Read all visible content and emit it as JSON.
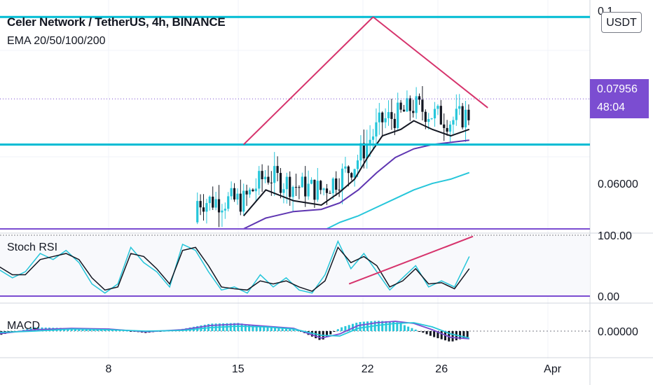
{
  "header": {
    "symbol_title": "Celer Network / TetherUS, 4h, BINANCE",
    "indicator_label": "EMA 20/50/100/200"
  },
  "currency_badge": "USDT",
  "price_tags": {
    "current_price": "0.07956",
    "countdown": "48:04"
  },
  "panes": {
    "stoch_label": "Stoch RSI",
    "macd_label": "MACD"
  },
  "colors": {
    "up_candle": "#26c6da",
    "down_candle": "#131722",
    "ema20": "#131722",
    "ema50": "#5e35b1",
    "ema100": "#26c6da",
    "trendline": "#d6336c",
    "horizontal_level": "#00bcd4",
    "stoch_k": "#26c6da",
    "stoch_d": "#131722",
    "macd_line": "#7b4dd1",
    "signal_line": "#26c6da",
    "hist_pos": "#26c6da",
    "hist_neg": "#131722",
    "price_tag_bg": "#7b4dd1"
  },
  "chart_data": [
    {
      "type": "candlestick",
      "title": "Celer Network / TetherUS, 4h, BINANCE",
      "x_ticks": [
        "8",
        "15",
        "22",
        "26",
        "Apr"
      ],
      "y_ticks": [
        "0.06000",
        "0.07956",
        "0.1"
      ],
      "ylim": [
        0.049,
        0.1
      ],
      "current_price": 0.07956,
      "horizontal_levels": [
        0.0985,
        0.069
      ],
      "trendlines": [
        {
          "from": [
            15.3,
            0.069
          ],
          "to": [
            22.3,
            0.0985
          ]
        },
        {
          "from": [
            22.3,
            0.0985
          ],
          "to": [
            28.5,
            0.0775
          ]
        }
      ],
      "series": [
        {
          "name": "EMA 20/50/100/200",
          "type": "line",
          "x": [
            15.3,
            16.5,
            18.0,
            19.5,
            20.5,
            21.3,
            22.0,
            22.8,
            23.8,
            24.5,
            25.5,
            26.5,
            27.5
          ],
          "values": [
            0.0525,
            0.0585,
            0.056,
            0.055,
            0.058,
            0.061,
            0.066,
            0.071,
            0.0725,
            0.0745,
            0.0725,
            0.071,
            0.0725
          ]
        },
        {
          "type": "line",
          "x": [
            15.3,
            16.5,
            18.0,
            19.5,
            20.5,
            21.5,
            22.5,
            23.5,
            24.5,
            25.5,
            26.5,
            27.5
          ],
          "values": [
            0.0495,
            0.052,
            0.0535,
            0.054,
            0.0555,
            0.0585,
            0.0625,
            0.066,
            0.068,
            0.069,
            0.0695,
            0.07
          ]
        },
        {
          "type": "line",
          "x": [
            19.8,
            20.5,
            21.5,
            22.5,
            23.5,
            24.5,
            25.5,
            26.5,
            27.5
          ],
          "values": [
            0.0495,
            0.051,
            0.0525,
            0.0545,
            0.0565,
            0.0585,
            0.06,
            0.061,
            0.0625
          ]
        }
      ]
    },
    {
      "type": "line",
      "name": "Stoch RSI",
      "y_ticks": [
        "100.00",
        "0.00"
      ],
      "ylim": [
        0,
        100
      ],
      "bands": [
        80,
        20
      ],
      "series": [
        {
          "x": [
            2.0,
            2.8,
            3.5,
            4.3,
            5.0,
            5.7,
            6.4,
            7.1,
            7.8,
            8.5,
            9.2,
            9.9,
            10.6,
            11.3,
            12.0,
            12.7,
            13.4,
            14.1,
            14.8,
            15.5,
            16.2,
            16.9,
            17.6,
            18.3,
            19.0,
            19.7,
            20.4,
            21.1,
            21.8,
            22.5,
            23.2,
            23.9,
            24.6,
            25.3,
            26.0,
            26.7,
            27.5
          ],
          "values": [
            45,
            30,
            40,
            70,
            60,
            75,
            55,
            20,
            5,
            20,
            80,
            55,
            40,
            15,
            85,
            75,
            40,
            10,
            15,
            5,
            35,
            15,
            30,
            10,
            5,
            35,
            90,
            45,
            70,
            40,
            10,
            30,
            50,
            15,
            25,
            15,
            65
          ]
        },
        {
          "x": [
            2.0,
            2.8,
            3.5,
            4.3,
            5.0,
            5.7,
            6.4,
            7.1,
            7.8,
            8.5,
            9.2,
            9.9,
            10.6,
            11.3,
            12.0,
            12.7,
            13.4,
            14.1,
            14.8,
            15.5,
            16.2,
            16.9,
            17.6,
            18.3,
            19.0,
            19.7,
            20.4,
            21.1,
            21.8,
            22.5,
            23.2,
            23.9,
            24.6,
            25.3,
            26.0,
            26.7,
            27.5
          ],
          "values": [
            50,
            35,
            35,
            60,
            65,
            70,
            60,
            30,
            10,
            15,
            70,
            65,
            45,
            20,
            75,
            80,
            50,
            15,
            12,
            10,
            25,
            20,
            25,
            15,
            8,
            25,
            80,
            55,
            65,
            50,
            15,
            25,
            45,
            20,
            22,
            12,
            45
          ]
        }
      ],
      "trendlines": [
        {
          "from": [
            21.0,
            20
          ],
          "to": [
            27.7,
            98
          ]
        }
      ]
    },
    {
      "type": "line",
      "name": "MACD",
      "y_ticks": [
        "0.00000"
      ],
      "ylim": [
        -1,
        1
      ],
      "series": [
        {
          "x": [
            2.0,
            4.0,
            6.0,
            8.0,
            10.0,
            12.0,
            13.5,
            15.0,
            16.5,
            18.0,
            19.5,
            20.5,
            21.5,
            22.5,
            23.5,
            24.5,
            25.5,
            26.5,
            27.5
          ],
          "values": [
            -0.2,
            0.1,
            0.2,
            0.15,
            -0.05,
            0.1,
            0.4,
            0.5,
            0.35,
            0.2,
            -0.5,
            -0.2,
            0.4,
            0.6,
            0.7,
            0.55,
            0.1,
            -0.45,
            -0.55
          ]
        },
        {
          "x": [
            2.0,
            4.0,
            6.0,
            8.0,
            10.0,
            12.0,
            13.5,
            15.0,
            16.5,
            18.0,
            19.5,
            20.5,
            21.5,
            22.5,
            23.5,
            24.5,
            25.5,
            26.5,
            27.5
          ],
          "values": [
            -0.1,
            0.0,
            0.15,
            0.1,
            0.0,
            0.05,
            0.25,
            0.35,
            0.3,
            0.15,
            -0.3,
            -0.35,
            0.2,
            0.4,
            0.55,
            0.6,
            0.3,
            -0.2,
            -0.5
          ]
        }
      ]
    }
  ]
}
